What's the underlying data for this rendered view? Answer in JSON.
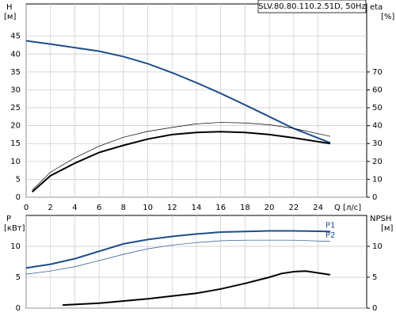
{
  "chart_data": [
    {
      "type": "line",
      "title": "SLV.80.80.110.2.51D, 50Hz",
      "y_label": "H",
      "y_unit": "[м]",
      "y2_label": "eta",
      "y2_unit": "[%]",
      "x_label": "Q [л/с]",
      "xlim": [
        0,
        28
      ],
      "xticks": [
        0,
        2,
        4,
        6,
        8,
        10,
        12,
        14,
        16,
        18,
        20,
        22,
        24
      ],
      "show_xtick_labels": true,
      "ylim": [
        0,
        54
      ],
      "yticks": [
        0,
        5,
        10,
        15,
        20,
        25,
        30,
        35,
        40,
        45
      ],
      "y2lim": [
        0,
        108
      ],
      "y2ticks": [
        0,
        10,
        20,
        30,
        40,
        50,
        60,
        70
      ],
      "grid": true,
      "series": [
        {
          "color": "#1f4e8c",
          "line_width": 2,
          "x": [
            0,
            2,
            4,
            6,
            8,
            10,
            12,
            14,
            16,
            18,
            20,
            22,
            25
          ],
          "values": [
            43.7,
            42.8,
            41.8,
            40.8,
            39.3,
            37.3,
            34.8,
            32,
            29,
            25.8,
            22.5,
            19.2,
            15.2
          ]
        },
        {
          "color": "#000000",
          "line_width": 2,
          "axis": "y2",
          "x": [
            0.5,
            2,
            4,
            6,
            8,
            10,
            12,
            14,
            16,
            18,
            20,
            22,
            25
          ],
          "values": [
            3,
            12,
            19,
            25,
            29,
            32.5,
            35,
            36.2,
            36.6,
            36.2,
            35,
            33.2,
            30
          ]
        },
        {
          "color": "#000000",
          "line_width": 0.7,
          "axis": "y2",
          "x": [
            0.5,
            2,
            4,
            6,
            8,
            10,
            12,
            14,
            16,
            18,
            20,
            22,
            25
          ],
          "values": [
            4,
            14,
            22,
            28.5,
            33.5,
            36.8,
            39,
            41,
            41.8,
            41.5,
            40.5,
            38.5,
            34
          ]
        }
      ]
    },
    {
      "type": "line",
      "y_label": "P",
      "y_unit": "[кВт]",
      "y2_label": "NPSH",
      "y2_unit": "[м]",
      "xlim": [
        0,
        28
      ],
      "xticks": [
        0,
        2,
        4,
        6,
        8,
        10,
        12,
        14,
        16,
        18,
        20,
        22,
        24
      ],
      "show_xtick_labels": false,
      "ylim": [
        0,
        15
      ],
      "yticks": [
        0,
        5,
        10
      ],
      "y2lim": [
        0,
        15
      ],
      "y2ticks": [
        0,
        5,
        10
      ],
      "grid": true,
      "series": [
        {
          "name": "P1",
          "color": "#1f4e8c",
          "line_width": 2,
          "x": [
            0,
            2,
            4,
            6,
            8,
            10,
            12,
            14,
            16,
            18,
            20,
            22,
            25
          ],
          "values": [
            6.5,
            7.1,
            8,
            9.2,
            10.4,
            11.1,
            11.6,
            12,
            12.3,
            12.4,
            12.5,
            12.5,
            12.4
          ]
        },
        {
          "name": "P2",
          "color": "#1f4e8c",
          "line_width": 0.7,
          "x": [
            0,
            2,
            4,
            6,
            8,
            10,
            12,
            14,
            16,
            18,
            20,
            22,
            25
          ],
          "values": [
            5.5,
            6,
            6.7,
            7.7,
            8.7,
            9.6,
            10.2,
            10.6,
            10.9,
            11,
            11,
            11,
            10.8
          ]
        },
        {
          "color": "#000000",
          "line_width": 2,
          "axis": "y2",
          "x": [
            3,
            6,
            10,
            14,
            16,
            18,
            20,
            21,
            22,
            23,
            25
          ],
          "values": [
            0.5,
            0.8,
            1.5,
            2.4,
            3.1,
            4,
            5,
            5.6,
            5.9,
            6,
            5.4
          ]
        }
      ]
    }
  ]
}
